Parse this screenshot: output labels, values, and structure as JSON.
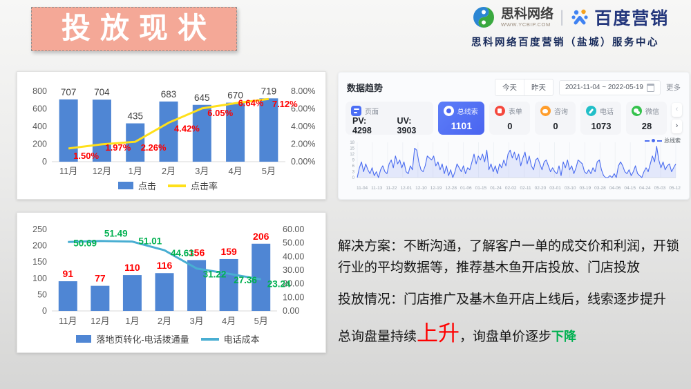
{
  "slide_title": "投放现状",
  "brand": {
    "company_name": "思科网络",
    "company_url": "WWW.YCBIP.COM",
    "divider": "|",
    "partner_name": "百度营销",
    "subtitle": "思科网络百度营销（盐城）服务中心"
  },
  "chart_data": [
    {
      "type": "bar+line",
      "categories": [
        "11月",
        "12月",
        "1月",
        "2月",
        "3月",
        "4月",
        "5月"
      ],
      "series": [
        {
          "name": "点击",
          "type": "bar",
          "color": "#4f86d4",
          "values": [
            707,
            704,
            435,
            683,
            645,
            670,
            719
          ]
        },
        {
          "name": "点击率",
          "type": "line",
          "color": "#ffe01a",
          "values": [
            1.5,
            1.97,
            2.26,
            4.42,
            6.05,
            6.64,
            7.12
          ],
          "labels": [
            "1.50%",
            "1.97%",
            "2.26%",
            "4.42%",
            "6.05%",
            "6.64%",
            "7.12%"
          ]
        }
      ],
      "left_axis": {
        "min": 0,
        "max": 800,
        "ticks": [
          "0",
          "200",
          "400",
          "600",
          "800"
        ]
      },
      "right_axis": {
        "min": 0,
        "max": 8,
        "ticks": [
          "0.00%",
          "2.00%",
          "4.00%",
          "6.00%",
          "8.00%"
        ]
      },
      "bar_label_color": "#3f3f3f",
      "line_label_color": "#ff0000",
      "grid": false,
      "legend_position": "bottom"
    },
    {
      "type": "bar+line",
      "categories": [
        "11月",
        "12月",
        "1月",
        "2月",
        "3月",
        "4月",
        "5月"
      ],
      "series": [
        {
          "name": "落地页转化-电话拨通量",
          "type": "bar",
          "color": "#4f86d4",
          "values": [
            91,
            77,
            110,
            116,
            156,
            159,
            206
          ]
        },
        {
          "name": "电话成本",
          "type": "line",
          "color": "#49aed2",
          "values": [
            50.69,
            51.49,
            51.01,
            44.63,
            31.22,
            27.36,
            23.24
          ],
          "labels": [
            "50.69",
            "51.49",
            "51.01",
            "44.63",
            "31.22",
            "27.36",
            "23.24"
          ]
        }
      ],
      "left_axis": {
        "min": 0,
        "max": 250,
        "ticks": [
          "0",
          "50",
          "100",
          "150",
          "200",
          "250"
        ]
      },
      "right_axis": {
        "min": 0,
        "max": 60,
        "ticks": [
          "0.00",
          "10.00",
          "20.00",
          "30.00",
          "40.00",
          "50.00",
          "60.00"
        ]
      },
      "bar_label_color": "#ff0000",
      "line_label_color": "#00b050",
      "grid": false,
      "legend_position": "bottom"
    },
    {
      "type": "area",
      "name": "总线索",
      "color": "#4a6cf0",
      "ylim": [
        0,
        18
      ],
      "y_ticks": [
        "18",
        "15",
        "12",
        "9",
        "6",
        "3",
        "0"
      ],
      "x_ticks": [
        "11-04",
        "11-13",
        "11-22",
        "12-01",
        "12-10",
        "12-19",
        "12-28",
        "01-06",
        "01-15",
        "01-24",
        "02-02",
        "02-11",
        "02-20",
        "03-01",
        "03-10",
        "03-19",
        "03-28",
        "04-06",
        "04-15",
        "04-24",
        "05-03",
        "05-12"
      ],
      "values": [
        0,
        5,
        8,
        3,
        7,
        4,
        2,
        5,
        1,
        3,
        0,
        4,
        6,
        3,
        2,
        7,
        9,
        5,
        11,
        7,
        9,
        5,
        8,
        3,
        2,
        6,
        4,
        15,
        14,
        8,
        4,
        3,
        6,
        11,
        10,
        9,
        11,
        6,
        8,
        4,
        7,
        2,
        6,
        1,
        4,
        0,
        3,
        7,
        5,
        3,
        6,
        2,
        5,
        4,
        8,
        12,
        7,
        11,
        9,
        12,
        8,
        14,
        4,
        7,
        3,
        6,
        2,
        7,
        5,
        9,
        6,
        12,
        14,
        10,
        13,
        9,
        12,
        6,
        10,
        13,
        7,
        11,
        6,
        4,
        9,
        10,
        7,
        4,
        8,
        9,
        6,
        3,
        5,
        3,
        2,
        6,
        1,
        8,
        5,
        9,
        4,
        6,
        2,
        5,
        9,
        8,
        7,
        3,
        2,
        4,
        2,
        5,
        3,
        8,
        9,
        4,
        1,
        0,
        0,
        1,
        0,
        2,
        0,
        6,
        8,
        6,
        3,
        2,
        4,
        1,
        3,
        6,
        2,
        1,
        0,
        3,
        5,
        3,
        7,
        11,
        8,
        16,
        9,
        5,
        8,
        4,
        6,
        7,
        3,
        5,
        7
      ],
      "legend_position": "top-right"
    }
  ],
  "trend_panel": {
    "title": "数据趋势",
    "btn_today": "今天",
    "btn_yesterday": "昨天",
    "date_range": "2021-11-04 ~ 2022-05-19",
    "more_label": "更多",
    "nav_prev": "‹",
    "nav_next": "›",
    "cards": {
      "page": {
        "label": "页面",
        "pv": "PV: 4298",
        "uv": "UV: 3903"
      },
      "leads": {
        "label": "总线索",
        "value": "1101"
      },
      "form": {
        "label": "表单",
        "value": "0"
      },
      "consult": {
        "label": "咨询",
        "value": "0"
      },
      "phone": {
        "label": "电话",
        "value": "1073"
      },
      "wechat": {
        "label": "微信",
        "value": "28"
      }
    },
    "legend": "总线索"
  },
  "notes": {
    "p1": "解决方案：不断沟通，了解客户一单的成交价和利润，开锁行业的平均数据等，推荐基木鱼开店投放、门店投放",
    "p2": "投放情况：门店推广及基木鱼开店上线后，线索逐步提升",
    "p3_prefix": "总询盘量持续",
    "p3_up": "上升",
    "p3_mid": "，询盘单价逐步",
    "p3_down": "下降"
  },
  "colors": {
    "bar_blue": "#4f86d4",
    "line_yellow": "#ffe01a",
    "line_teal": "#49aed2",
    "trend_blue": "#4a6cf0",
    "title_bg": "#f4a897",
    "up_red": "#fe0000",
    "down_green": "#00b050"
  }
}
